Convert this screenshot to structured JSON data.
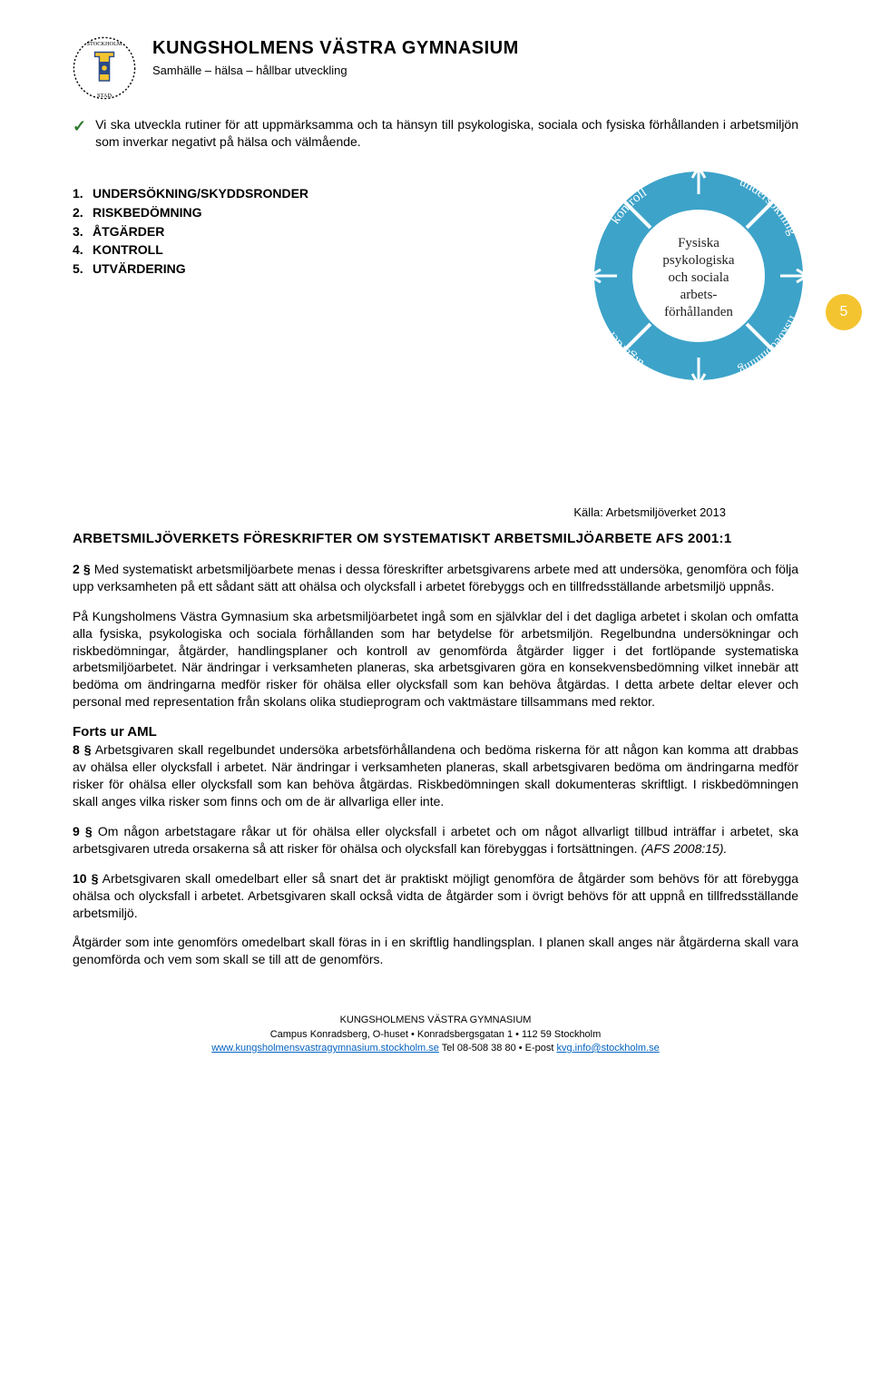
{
  "header": {
    "title": "KUNGSHOLMENS VÄSTRA GYMNASIUM",
    "subtitle": "Samhälle – hälsa – hållbar utveckling"
  },
  "check_item": {
    "text": "Vi ska utveckla rutiner för att uppmärksamma och ta hänsyn till psykologiska, sociala och fysiska förhållanden i arbetsmiljön som inverkar negativt på hälsa och välmående."
  },
  "process_list": [
    "UNDERSÖKNING/SKYDDSRONDER",
    "RISKBEDÖMNING",
    "ÅTGÄRDER",
    "KONTROLL",
    "UTVÄRDERING"
  ],
  "page_number": "5",
  "diagram": {
    "ring_color": "#3da3c9",
    "arrow_color": "#ffffff",
    "center_color": "#ffffff",
    "center_text_color": "#3da3c9",
    "segments": [
      "undersökning",
      "riskbedömning",
      "åtgärder",
      "kontroll"
    ],
    "center_lines": [
      "Fysiska",
      "psykologiska",
      "och sociala",
      "arbets-",
      "förhållanden"
    ]
  },
  "caption": "Källa: Arbetsmiljöverket 2013",
  "section_heading": "ARBETSMILJÖVERKETS FÖRESKRIFTER OM SYSTEMATISKT ARBETSMILJÖARBETE AFS 2001:1",
  "para1_lead": "2 §",
  "para1": " Med systematiskt arbetsmiljöarbete menas i dessa föreskrifter arbetsgivarens arbete med att undersöka, genomföra och följa upp verksamheten på ett sådant sätt att ohälsa och olycksfall i arbetet förebyggs och en tillfredsställande arbetsmiljö uppnås.",
  "para2": "På Kungsholmens Västra Gymnasium ska arbetsmiljöarbetet ingå som en självklar del i det dagliga arbetet i skolan och omfatta alla fysiska, psykologiska och sociala förhållanden som har betydelse för arbetsmiljön. Regelbundna undersökningar och riskbedömningar, åtgärder, handlingsplaner och kontroll av genomförda åtgärder ligger i det fortlöpande systematiska arbetsmiljöarbetet. När ändringar i verksamheten planeras, ska arbetsgivaren göra en konsekvensbedömning vilket innebär att bedöma om ändringarna medför risker för ohälsa eller olycksfall som kan behöva åtgärdas. I detta arbete deltar elever och personal med representation från skolans olika studieprogram och vaktmästare tillsammans med rektor.",
  "sub_heading": "Forts ur AML",
  "para3_lead": "8 §",
  "para3": " Arbetsgivaren skall regelbundet undersöka arbetsförhållandena och bedöma riskerna för att någon kan komma att drabbas av ohälsa eller olycksfall i arbetet. När ändringar i verksamheten planeras, skall arbetsgivaren bedöma om ändringarna medför risker för ohälsa eller olycksfall som kan behöva åtgärdas. Riskbedömningen skall dokumenteras skriftligt. I riskbedömningen skall anges vilka risker som finns och om de är allvarliga eller inte.",
  "para4_lead": "9 §",
  "para4a": " Om någon arbetstagare råkar ut för ohälsa eller olycksfall i arbetet och om något allvarligt tillbud inträffar i arbetet, ska arbetsgivaren utreda orsakerna så att risker för ohälsa och olycksfall kan förebyggas i fortsättningen. ",
  "para4b": "(AFS 2008:15).",
  "para5_lead": "10 §",
  "para5": " Arbetsgivaren skall omedelbart eller så snart det är praktiskt möjligt genomföra de åtgärder som behövs för att förebygga ohälsa och olycksfall i arbetet. Arbetsgivaren skall också vidta de åtgärder som i övrigt behövs för att uppnå en tillfredsställande arbetsmiljö.",
  "para6": "Åtgärder som inte genomförs omedelbart skall föras in i en skriftlig handlingsplan. I planen skall anges när åtgärderna skall vara genomförda och vem som skall se till att de genomförs.",
  "footer": {
    "line1": "KUNGSHOLMENS VÄSTRA GYMNASIUM",
    "line2": "Campus Konradsberg, O-huset • Konradsbergsgatan 1 • 112 59 Stockholm",
    "link1": "www.kungsholmensvastragymnasium.stockholm.se",
    "mid": " Tel 08-508 38 80 • E-post ",
    "link2": "kvg.info@stockholm.se"
  }
}
